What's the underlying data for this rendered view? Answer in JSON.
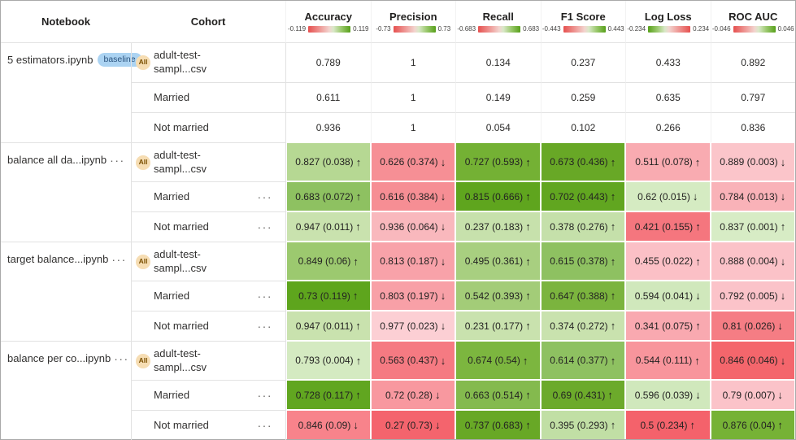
{
  "icons": {
    "more_options": "···",
    "up_arrow": "↑",
    "down_arrow": "↓"
  },
  "badges": {
    "baseline": {
      "label": "baseline",
      "bg": "#abd3f2",
      "fg": "#29527d"
    },
    "all": {
      "label": "All",
      "bg": "#f6ddb3",
      "fg": "#7a4f01"
    }
  },
  "table": {
    "columns": [
      {
        "id": "notebook",
        "label": "Notebook"
      },
      {
        "id": "cohort",
        "label": "Cohort"
      },
      {
        "id": "accuracy",
        "label": "Accuracy",
        "scale_min": "-0.119",
        "scale_max": "0.119",
        "scale_reversed": false
      },
      {
        "id": "precision",
        "label": "Precision",
        "scale_min": "-0.73",
        "scale_max": "0.73",
        "scale_reversed": false
      },
      {
        "id": "recall",
        "label": "Recall",
        "scale_min": "-0.683",
        "scale_max": "0.683",
        "scale_reversed": false
      },
      {
        "id": "f1-score",
        "label": "F1 Score",
        "scale_min": "-0.443",
        "scale_max": "0.443",
        "scale_reversed": false
      },
      {
        "id": "log-loss",
        "label": "Log Loss",
        "scale_min": "-0.234",
        "scale_max": "0.234",
        "scale_reversed": true
      },
      {
        "id": "roc-auc",
        "label": "ROC AUC",
        "scale_min": "-0.046",
        "scale_max": "0.046",
        "scale_reversed": false
      }
    ],
    "groups": [
      {
        "notebook": "5 estimators.ipynb",
        "baseline_badge": true,
        "menu": false,
        "rows": [
          {
            "cohort_lines": [
              "adult-test-",
              "sampl...csv"
            ],
            "all_badge": true,
            "menu": false,
            "cells": [
              {
                "value": "0.789"
              },
              {
                "value": "1"
              },
              {
                "value": "0.134"
              },
              {
                "value": "0.237"
              },
              {
                "value": "0.433"
              },
              {
                "value": "0.892"
              }
            ]
          },
          {
            "cohort_lines": [
              "Married"
            ],
            "all_badge": false,
            "menu": false,
            "cells": [
              {
                "value": "0.611"
              },
              {
                "value": "1"
              },
              {
                "value": "0.149"
              },
              {
                "value": "0.259"
              },
              {
                "value": "0.635"
              },
              {
                "value": "0.797"
              }
            ]
          },
          {
            "cohort_lines": [
              "Not married"
            ],
            "all_badge": false,
            "menu": false,
            "cells": [
              {
                "value": "0.936"
              },
              {
                "value": "1"
              },
              {
                "value": "0.054"
              },
              {
                "value": "0.102"
              },
              {
                "value": "0.266"
              },
              {
                "value": "0.836"
              }
            ]
          }
        ]
      },
      {
        "notebook": "balance all da...ipynb",
        "baseline_badge": false,
        "menu": true,
        "rows": [
          {
            "cohort_lines": [
              "adult-test-",
              "sampl...csv"
            ],
            "all_badge": true,
            "menu": false,
            "cells": [
              {
                "value": "0.827",
                "delta": "0.038",
                "dir": "up",
                "bg": "#b6d893"
              },
              {
                "value": "0.626",
                "delta": "0.374",
                "dir": "down",
                "bg": "#f68f95"
              },
              {
                "value": "0.727",
                "delta": "0.593",
                "dir": "up",
                "bg": "#74b134"
              },
              {
                "value": "0.673",
                "delta": "0.436",
                "dir": "up",
                "bg": "#68a826"
              },
              {
                "value": "0.511",
                "delta": "0.078",
                "dir": "up",
                "bg": "#f9abb1"
              },
              {
                "value": "0.889",
                "delta": "0.003",
                "dir": "down",
                "bg": "#fbc5ca"
              }
            ]
          },
          {
            "cohort_lines": [
              "Married"
            ],
            "all_badge": false,
            "menu": true,
            "cells": [
              {
                "value": "0.683",
                "delta": "0.072",
                "dir": "up",
                "bg": "#8ec161"
              },
              {
                "value": "0.616",
                "delta": "0.384",
                "dir": "down",
                "bg": "#f68e94"
              },
              {
                "value": "0.815",
                "delta": "0.666",
                "dir": "up",
                "bg": "#5fa51e"
              },
              {
                "value": "0.702",
                "delta": "0.443",
                "dir": "up",
                "bg": "#61a620"
              },
              {
                "value": "0.62",
                "delta": "0.015",
                "dir": "down",
                "bg": "#d5ebc2"
              },
              {
                "value": "0.784",
                "delta": "0.013",
                "dir": "down",
                "bg": "#f9b2b8"
              }
            ]
          },
          {
            "cohort_lines": [
              "Not married"
            ],
            "all_badge": false,
            "menu": true,
            "cells": [
              {
                "value": "0.947",
                "delta": "0.011",
                "dir": "up",
                "bg": "#c9e2ae"
              },
              {
                "value": "0.936",
                "delta": "0.064",
                "dir": "down",
                "bg": "#f9b8bd"
              },
              {
                "value": "0.237",
                "delta": "0.183",
                "dir": "up",
                "bg": "#c7e1ac"
              },
              {
                "value": "0.378",
                "delta": "0.276",
                "dir": "up",
                "bg": "#c5e0aa"
              },
              {
                "value": "0.421",
                "delta": "0.155",
                "dir": "up",
                "bg": "#f5767e"
              },
              {
                "value": "0.837",
                "delta": "0.001",
                "dir": "up",
                "bg": "#d7ecc5"
              }
            ]
          }
        ]
      },
      {
        "notebook": "target balance...ipynb",
        "baseline_badge": false,
        "menu": true,
        "rows": [
          {
            "cohort_lines": [
              "adult-test-",
              "sampl...csv"
            ],
            "all_badge": true,
            "menu": false,
            "cells": [
              {
                "value": "0.849",
                "delta": "0.06",
                "dir": "up",
                "bg": "#9cc96f"
              },
              {
                "value": "0.813",
                "delta": "0.187",
                "dir": "down",
                "bg": "#f8a2a9"
              },
              {
                "value": "0.495",
                "delta": "0.361",
                "dir": "up",
                "bg": "#a8cf80"
              },
              {
                "value": "0.615",
                "delta": "0.378",
                "dir": "up",
                "bg": "#8ec161"
              },
              {
                "value": "0.455",
                "delta": "0.022",
                "dir": "up",
                "bg": "#fbc0c6"
              },
              {
                "value": "0.888",
                "delta": "0.004",
                "dir": "down",
                "bg": "#fbc2c8"
              }
            ]
          },
          {
            "cohort_lines": [
              "Married"
            ],
            "all_badge": false,
            "menu": true,
            "cells": [
              {
                "value": "0.73",
                "delta": "0.119",
                "dir": "up",
                "bg": "#5ea51d"
              },
              {
                "value": "0.803",
                "delta": "0.197",
                "dir": "down",
                "bg": "#f8a0a7"
              },
              {
                "value": "0.542",
                "delta": "0.393",
                "dir": "up",
                "bg": "#a3cc78"
              },
              {
                "value": "0.647",
                "delta": "0.388",
                "dir": "up",
                "bg": "#7bb43e"
              },
              {
                "value": "0.594",
                "delta": "0.041",
                "dir": "down",
                "bg": "#d0e8bc"
              },
              {
                "value": "0.792",
                "delta": "0.005",
                "dir": "down",
                "bg": "#fbc3c9"
              }
            ]
          },
          {
            "cohort_lines": [
              "Not married"
            ],
            "all_badge": false,
            "menu": true,
            "cells": [
              {
                "value": "0.947",
                "delta": "0.011",
                "dir": "up",
                "bg": "#c9e2ae"
              },
              {
                "value": "0.977",
                "delta": "0.023",
                "dir": "down",
                "bg": "#fccfd4"
              },
              {
                "value": "0.231",
                "delta": "0.177",
                "dir": "up",
                "bg": "#c9e2ae"
              },
              {
                "value": "0.374",
                "delta": "0.272",
                "dir": "up",
                "bg": "#c9e2ae"
              },
              {
                "value": "0.341",
                "delta": "0.075",
                "dir": "up",
                "bg": "#f9a9b0"
              },
              {
                "value": "0.81",
                "delta": "0.026",
                "dir": "down",
                "bg": "#f57d84"
              }
            ]
          }
        ]
      },
      {
        "notebook": "balance per co...ipynb",
        "baseline_badge": false,
        "menu": true,
        "rows": [
          {
            "cohort_lines": [
              "adult-test-",
              "sampl...csv"
            ],
            "all_badge": true,
            "menu": false,
            "cells": [
              {
                "value": "0.793",
                "delta": "0.004",
                "dir": "up",
                "bg": "#d4eac1"
              },
              {
                "value": "0.563",
                "delta": "0.437",
                "dir": "down",
                "bg": "#f57a82"
              },
              {
                "value": "0.674",
                "delta": "0.54",
                "dir": "up",
                "bg": "#7cb63f"
              },
              {
                "value": "0.614",
                "delta": "0.377",
                "dir": "up",
                "bg": "#8ec161"
              },
              {
                "value": "0.544",
                "delta": "0.111",
                "dir": "up",
                "bg": "#f8959c"
              },
              {
                "value": "0.846",
                "delta": "0.046",
                "dir": "down",
                "bg": "#f4666c"
              }
            ]
          },
          {
            "cohort_lines": [
              "Married"
            ],
            "all_badge": false,
            "menu": true,
            "cells": [
              {
                "value": "0.728",
                "delta": "0.117",
                "dir": "up",
                "bg": "#61a620"
              },
              {
                "value": "0.72",
                "delta": "0.28",
                "dir": "down",
                "bg": "#f8989f"
              },
              {
                "value": "0.663",
                "delta": "0.514",
                "dir": "up",
                "bg": "#84ba4e"
              },
              {
                "value": "0.69",
                "delta": "0.431",
                "dir": "up",
                "bg": "#6caa2b"
              },
              {
                "value": "0.596",
                "delta": "0.039",
                "dir": "down",
                "bg": "#d0e8bc"
              },
              {
                "value": "0.79",
                "delta": "0.007",
                "dir": "down",
                "bg": "#fbc3c9"
              }
            ]
          },
          {
            "cohort_lines": [
              "Not married"
            ],
            "all_badge": false,
            "menu": true,
            "cells": [
              {
                "value": "0.846",
                "delta": "0.09",
                "dir": "down",
                "bg": "#f8838b"
              },
              {
                "value": "0.27",
                "delta": "0.73",
                "dir": "down",
                "bg": "#f4646d"
              },
              {
                "value": "0.737",
                "delta": "0.683",
                "dir": "up",
                "bg": "#68a826"
              },
              {
                "value": "0.395",
                "delta": "0.293",
                "dir": "up",
                "bg": "#c1dfa5"
              },
              {
                "value": "0.5",
                "delta": "0.234",
                "dir": "up",
                "bg": "#f4626b"
              },
              {
                "value": "0.876",
                "delta": "0.04",
                "dir": "up",
                "bg": "#76b236"
              }
            ]
          }
        ]
      }
    ]
  }
}
